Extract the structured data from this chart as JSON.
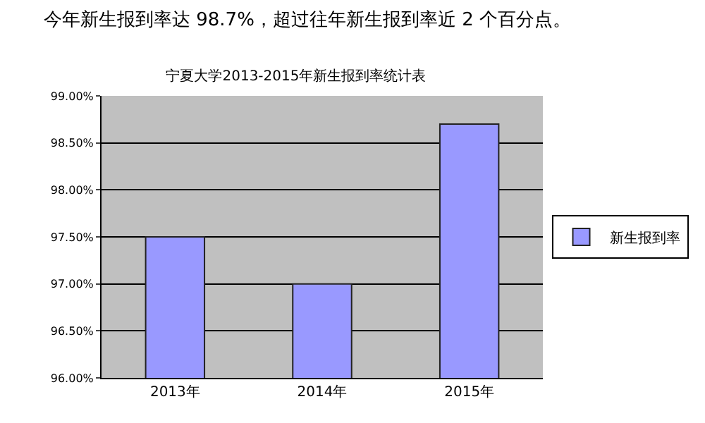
{
  "chart_data": {
    "type": "bar",
    "title": "宁夏大学2013-2015年新生报到率统计表",
    "annotations": [
      "今年新生报到率达 98.7%，超过往年新生报到率近 2 个百分点。"
    ],
    "categories": [
      "2013年",
      "2014年",
      "2015年"
    ],
    "series": [
      {
        "name": "新生报到率",
        "color": "#9999ff",
        "values": [
          97.5,
          97.0,
          98.7
        ]
      }
    ],
    "ylim": [
      96,
      99
    ],
    "yticks": [
      {
        "value": 96,
        "label": "96.00%"
      },
      {
        "value": 96.5,
        "label": "96.50%"
      },
      {
        "value": 97,
        "label": "97.00%"
      },
      {
        "value": 97.5,
        "label": "97.50%"
      },
      {
        "value": 98,
        "label": "98.00%"
      },
      {
        "value": 98.5,
        "label": "98.50%"
      },
      {
        "value": 99,
        "label": "99.00%"
      }
    ],
    "grid": "y",
    "legend": "right"
  }
}
